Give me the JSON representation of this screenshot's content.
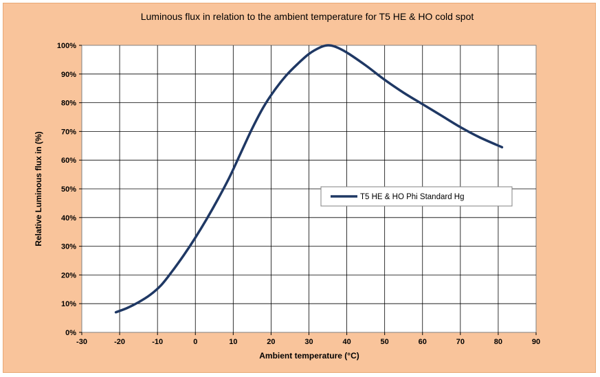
{
  "chart_data": {
    "type": "line",
    "title": "Luminous flux in relation to the ambient temperature for T5 HE & HO cold spot",
    "xlabel": "Ambient temperature (°C)",
    "ylabel": "Relative Luminous flux in (%)",
    "xlim": [
      -30,
      90
    ],
    "ylim": [
      0,
      100
    ],
    "x_ticks": [
      "-30",
      "-20",
      "-10",
      "0",
      "10",
      "20",
      "30",
      "40",
      "50",
      "60",
      "70",
      "80",
      "90"
    ],
    "y_ticks": [
      "0%",
      "10%",
      "20%",
      "30%",
      "40%",
      "50%",
      "60%",
      "70%",
      "80%",
      "90%",
      "100%"
    ],
    "grid": true,
    "legend_position": "right-middle",
    "series": [
      {
        "name": "T5 HE & HO Phi Standard Hg",
        "color": "#1f3864",
        "x": [
          -21,
          -18,
          -15,
          -12,
          -9,
          -6,
          -3,
          0,
          3,
          6,
          9,
          12,
          15,
          18,
          21,
          24,
          27,
          30,
          33,
          35,
          37,
          40,
          45,
          50,
          55,
          60,
          65,
          70,
          75,
          81
        ],
        "y": [
          7,
          8.5,
          10.5,
          13,
          16.5,
          21.5,
          27,
          33,
          39.5,
          46.5,
          54,
          62.5,
          71,
          78.5,
          84.5,
          89.5,
          93.5,
          97,
          99.3,
          100,
          99.5,
          97.5,
          93,
          88,
          83.5,
          79.5,
          75.5,
          71.5,
          68,
          64.5
        ]
      }
    ]
  }
}
